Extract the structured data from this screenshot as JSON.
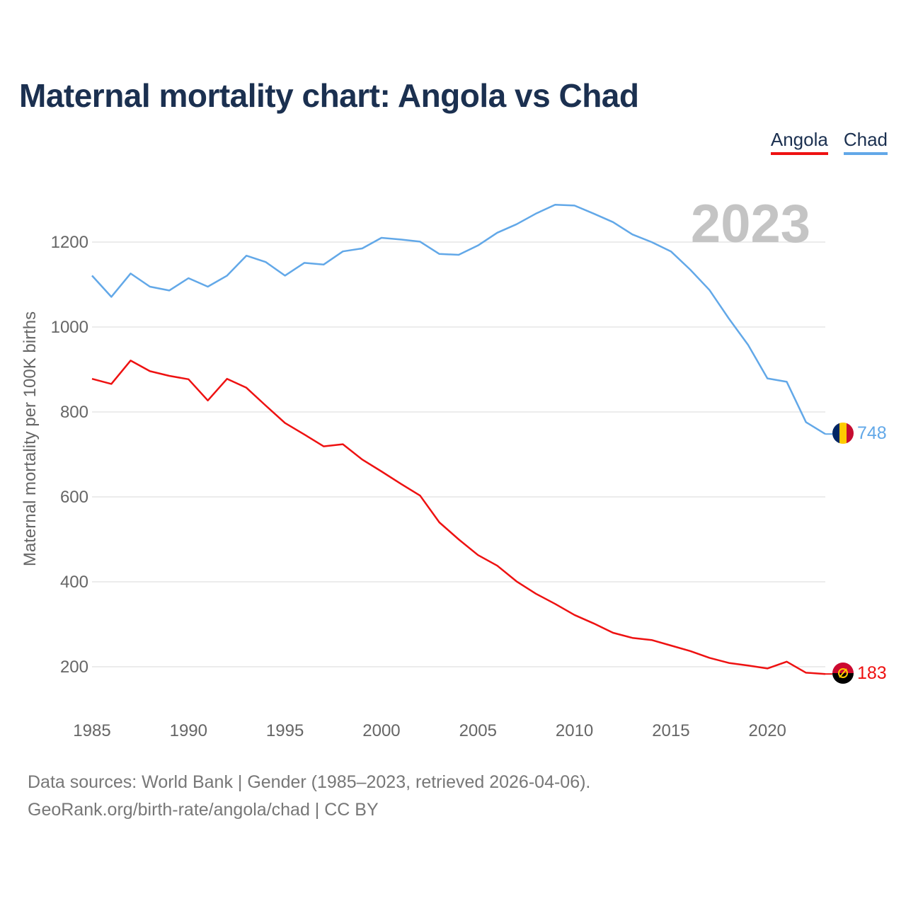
{
  "title": "Maternal mortality chart: Angola vs Chad",
  "legend": [
    {
      "label": "Angola",
      "color": "#ee1111"
    },
    {
      "label": "Chad",
      "color": "#62a8e8"
    }
  ],
  "footer": {
    "line1": "Data sources: World Bank | Gender (1985–2023, retrieved 2026-04-06).",
    "line2": "GeoRank.org/birth-rate/angola/chad | CC BY"
  },
  "chart_data": {
    "type": "line",
    "title": "Maternal mortality chart: Angola vs Chad",
    "ylabel": "Maternal mortality per 100K births",
    "xlabel": "",
    "year_label": "2023",
    "xlim": [
      1985,
      2023
    ],
    "ylim": [
      100,
      1300
    ],
    "grid": true,
    "legend_position": "top-right",
    "x_ticks": [
      "1985",
      "1990",
      "1995",
      "2000",
      "2005",
      "2010",
      "2015",
      "2020"
    ],
    "y_ticks": [
      "200",
      "400",
      "600",
      "800",
      "1000",
      "1200"
    ],
    "x": [
      1985,
      1986,
      1987,
      1988,
      1989,
      1990,
      1991,
      1992,
      1993,
      1994,
      1995,
      1996,
      1997,
      1998,
      1999,
      2000,
      2001,
      2002,
      2003,
      2004,
      2005,
      2006,
      2007,
      2008,
      2009,
      2010,
      2011,
      2012,
      2013,
      2014,
      2015,
      2016,
      2017,
      2018,
      2019,
      2020,
      2021,
      2022,
      2023
    ],
    "series": [
      {
        "name": "Angola",
        "color": "#ee1111",
        "end_label": "183",
        "values": [
          878,
          866,
          921,
          896,
          885,
          877,
          827,
          878,
          857,
          815,
          774,
          747,
          719,
          724,
          688,
          660,
          631,
          603,
          540,
          500,
          463,
          438,
          401,
          372,
          348,
          322,
          302,
          280,
          268,
          263,
          250,
          237,
          221,
          209,
          203,
          196,
          212,
          186,
          183
        ]
      },
      {
        "name": "Chad",
        "color": "#62a8e8",
        "end_label": "748",
        "values": [
          1121,
          1071,
          1126,
          1095,
          1086,
          1115,
          1095,
          1121,
          1168,
          1153,
          1121,
          1151,
          1147,
          1178,
          1185,
          1210,
          1206,
          1201,
          1172,
          1170,
          1192,
          1222,
          1242,
          1267,
          1288,
          1286,
          1267,
          1247,
          1218,
          1200,
          1178,
          1135,
          1087,
          1020,
          958,
          879,
          871,
          776,
          748
        ]
      }
    ]
  }
}
